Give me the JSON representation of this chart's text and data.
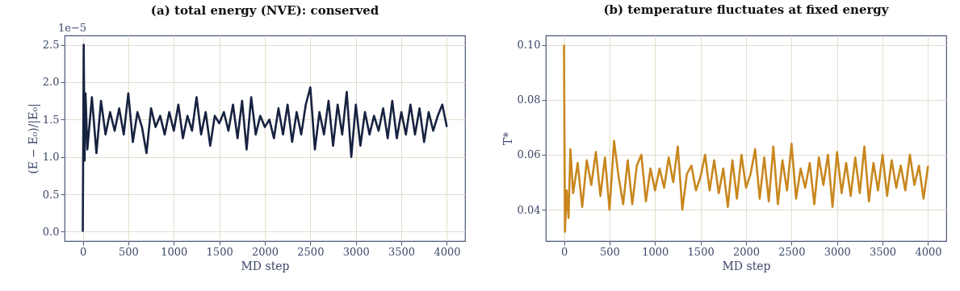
{
  "chart_data": [
    {
      "type": "line",
      "title": "(a) total energy (NVE): conserved",
      "xlabel": "MD step",
      "ylabel": "(E − E₀)/|E₀|",
      "grid": true,
      "annotations": [
        "1e−5"
      ],
      "x": [
        0,
        10,
        20,
        30,
        50,
        100,
        150,
        200,
        250,
        300,
        350,
        400,
        450,
        500,
        550,
        600,
        650,
        700,
        750,
        800,
        850,
        900,
        950,
        1000,
        1050,
        1100,
        1150,
        1200,
        1250,
        1300,
        1350,
        1400,
        1450,
        1500,
        1550,
        1600,
        1650,
        1700,
        1750,
        1800,
        1850,
        1900,
        1950,
        2000,
        2050,
        2100,
        2150,
        2200,
        2250,
        2300,
        2350,
        2400,
        2450,
        2500,
        2550,
        2600,
        2650,
        2700,
        2750,
        2800,
        2850,
        2900,
        2950,
        3000,
        3050,
        3100,
        3150,
        3200,
        3250,
        3300,
        3350,
        3400,
        3450,
        3500,
        3550,
        3600,
        3650,
        3700,
        3750,
        3800,
        3850,
        3900,
        3950,
        4000
      ],
      "series": [
        {
          "color": "#172240",
          "values": [
            0,
            2.5,
            0.95,
            1.85,
            1.1,
            1.8,
            1.05,
            1.75,
            1.3,
            1.6,
            1.35,
            1.65,
            1.3,
            1.85,
            1.2,
            1.6,
            1.4,
            1.05,
            1.65,
            1.4,
            1.55,
            1.3,
            1.6,
            1.35,
            1.7,
            1.25,
            1.55,
            1.35,
            1.8,
            1.3,
            1.6,
            1.15,
            1.55,
            1.45,
            1.6,
            1.35,
            1.7,
            1.25,
            1.75,
            1.1,
            1.8,
            1.3,
            1.55,
            1.4,
            1.5,
            1.25,
            1.65,
            1.3,
            1.7,
            1.2,
            1.6,
            1.3,
            1.7,
            1.93,
            1.1,
            1.6,
            1.3,
            1.75,
            1.15,
            1.7,
            1.3,
            1.87,
            1.0,
            1.7,
            1.15,
            1.6,
            1.3,
            1.55,
            1.35,
            1.65,
            1.25,
            1.75,
            1.25,
            1.6,
            1.3,
            1.7,
            1.3,
            1.65,
            1.2,
            1.6,
            1.35,
            1.55,
            1.7,
            1.4
          ]
        }
      ],
      "xlim": [
        -200,
        4200
      ],
      "ylim": [
        -0.125,
        2.625
      ],
      "xticks": [
        0,
        500,
        1000,
        1500,
        2000,
        2500,
        3000,
        3500,
        4000
      ],
      "yticks": [
        {
          "value": 0,
          "label": "0.0"
        },
        {
          "value": 0.5,
          "label": "0.5"
        },
        {
          "value": 1.0,
          "label": "1.0"
        },
        {
          "value": 1.5,
          "label": "1.5"
        },
        {
          "value": 2.0,
          "label": "2.0"
        },
        {
          "value": 2.5,
          "label": "2.5"
        }
      ]
    },
    {
      "type": "line",
      "title": "(b) temperature fluctuates at fixed energy",
      "xlabel": "MD step",
      "ylabel": "T*",
      "grid": true,
      "x": [
        0,
        10,
        30,
        50,
        70,
        100,
        150,
        200,
        250,
        300,
        350,
        400,
        450,
        500,
        550,
        600,
        650,
        700,
        750,
        800,
        850,
        900,
        950,
        1000,
        1050,
        1100,
        1150,
        1200,
        1250,
        1300,
        1350,
        1400,
        1450,
        1500,
        1550,
        1600,
        1650,
        1700,
        1750,
        1800,
        1850,
        1900,
        1950,
        2000,
        2050,
        2100,
        2150,
        2200,
        2250,
        2300,
        2350,
        2400,
        2450,
        2500,
        2550,
        2600,
        2650,
        2700,
        2750,
        2800,
        2850,
        2900,
        2950,
        3000,
        3050,
        3100,
        3150,
        3200,
        3250,
        3300,
        3350,
        3400,
        3450,
        3500,
        3550,
        3600,
        3650,
        3700,
        3750,
        3800,
        3850,
        3900,
        3950,
        4000
      ],
      "series": [
        {
          "color": "#c8871e",
          "values": [
            0.1,
            0.032,
            0.047,
            0.037,
            0.062,
            0.046,
            0.057,
            0.041,
            0.058,
            0.049,
            0.061,
            0.045,
            0.059,
            0.04,
            0.065,
            0.052,
            0.042,
            0.058,
            0.042,
            0.056,
            0.06,
            0.043,
            0.055,
            0.047,
            0.055,
            0.048,
            0.059,
            0.05,
            0.063,
            0.04,
            0.053,
            0.056,
            0.047,
            0.052,
            0.06,
            0.047,
            0.058,
            0.046,
            0.055,
            0.041,
            0.058,
            0.044,
            0.06,
            0.048,
            0.053,
            0.062,
            0.044,
            0.059,
            0.043,
            0.063,
            0.042,
            0.058,
            0.047,
            0.064,
            0.044,
            0.055,
            0.048,
            0.057,
            0.042,
            0.059,
            0.049,
            0.06,
            0.041,
            0.061,
            0.046,
            0.057,
            0.045,
            0.059,
            0.046,
            0.063,
            0.043,
            0.057,
            0.047,
            0.06,
            0.045,
            0.058,
            0.048,
            0.056,
            0.047,
            0.06,
            0.049,
            0.056,
            0.044,
            0.056
          ]
        }
      ],
      "xlim": [
        -200,
        4200
      ],
      "ylim": [
        0.0286,
        0.1034
      ],
      "xticks": [
        0,
        500,
        1000,
        1500,
        2000,
        2500,
        3000,
        3500,
        4000
      ],
      "yticks": [
        {
          "value": 0.04,
          "label": "0.04"
        },
        {
          "value": 0.06,
          "label": "0.06"
        },
        {
          "value": 0.08,
          "label": "0.08"
        },
        {
          "value": 0.1,
          "label": "0.10"
        }
      ]
    }
  ]
}
